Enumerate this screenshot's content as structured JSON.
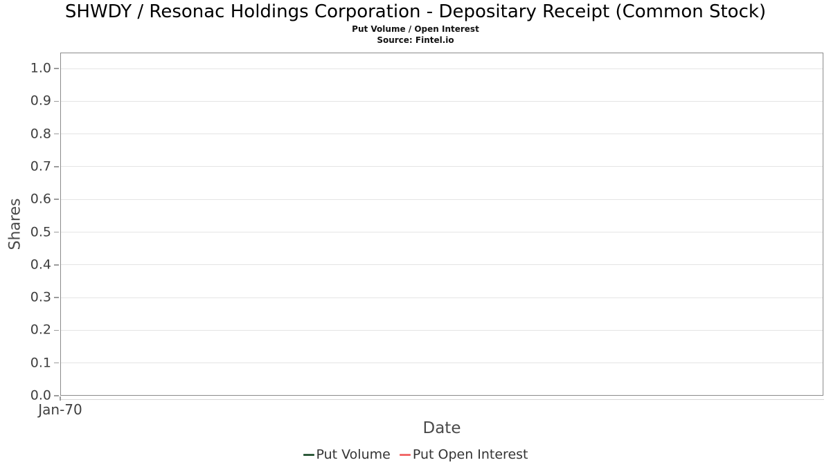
{
  "header": {
    "title": "SHWDY / Resonac Holdings Corporation - Depositary Receipt (Common Stock)",
    "subtitle": "Put Volume / Open Interest",
    "source": "Source: Fintel.io"
  },
  "axes": {
    "y_label": "Shares",
    "x_label": "Date",
    "y_ticks": [
      "1.0",
      "0.9",
      "0.8",
      "0.7",
      "0.6",
      "0.5",
      "0.4",
      "0.3",
      "0.2",
      "0.1",
      "0.0"
    ],
    "x_ticks": [
      "Jan-70"
    ]
  },
  "legend": {
    "items": [
      {
        "label": "Put Volume",
        "color": "#2e5a3b"
      },
      {
        "label": "Put Open Interest",
        "color": "#f16a6a"
      }
    ]
  },
  "colors": {
    "grid": "#e4e4e4",
    "plot_border": "#8a8a8a",
    "tick": "#9b9b9b",
    "put_volume": "#2e5a3b",
    "put_open_interest": "#f16a6a"
  },
  "chart_data": {
    "type": "line",
    "title": "SHWDY / Resonac Holdings Corporation - Depositary Receipt (Common Stock)",
    "subtitle": "Put Volume / Open Interest",
    "source": "Source: Fintel.io",
    "xlabel": "Date",
    "ylabel": "Shares",
    "x": [
      "Jan-70"
    ],
    "x_tick_labels": [
      "Jan-70"
    ],
    "y_tick_labels": [
      "0.0",
      "0.1",
      "0.2",
      "0.3",
      "0.4",
      "0.5",
      "0.6",
      "0.7",
      "0.8",
      "0.9",
      "1.0"
    ],
    "series": [
      {
        "name": "Put Volume",
        "color": "#2e5a3b",
        "values": []
      },
      {
        "name": "Put Open Interest",
        "color": "#f16a6a",
        "values": []
      }
    ],
    "ylim": [
      0.0,
      1.05
    ],
    "y_tick_step": 0.1,
    "grid": true,
    "plot_area_empty": true,
    "legend_position": "bottom"
  }
}
